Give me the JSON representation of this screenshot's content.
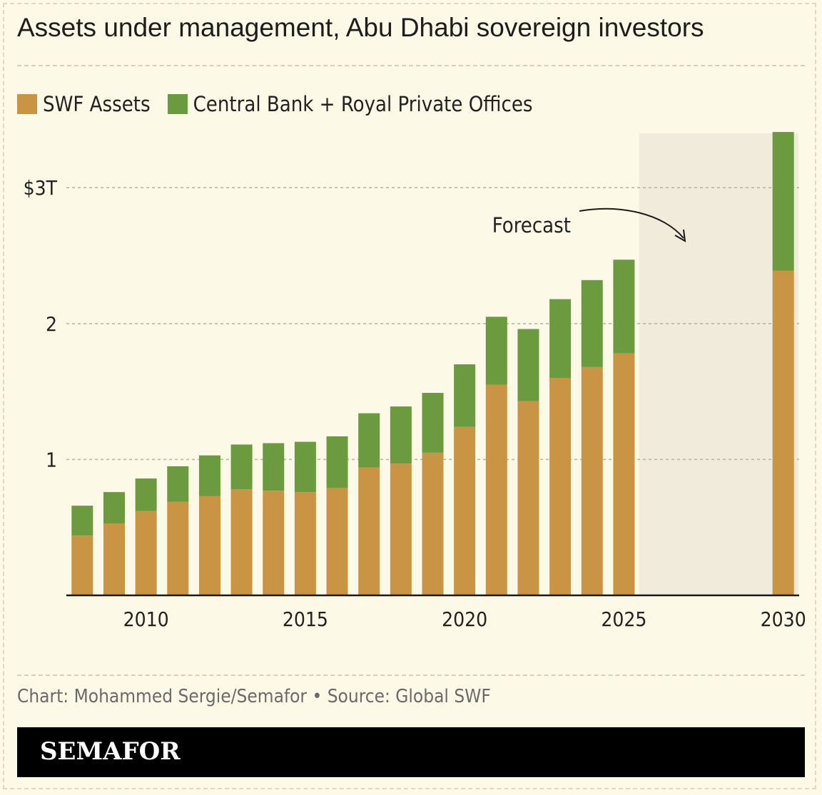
{
  "title": "Assets under management, Abu Dhabi sovereign investors",
  "legend": {
    "items": [
      {
        "label": "SWF Assets",
        "color": "#c99444"
      },
      {
        "label": "Central Bank + Royal Private Offices",
        "color": "#6b9a3f"
      }
    ]
  },
  "footer": {
    "credit": "Chart: Mohammed Sergie/Semafor • Source: Global SWF",
    "brand": "SEMAFOR"
  },
  "colors": {
    "swf": "#c99444",
    "central": "#6b9a3f",
    "forecast_band": "#f1ebdb",
    "background": "#fcf9e7"
  },
  "chart_data": {
    "type": "bar",
    "stacked": true,
    "x": [
      2008,
      2009,
      2010,
      2011,
      2012,
      2013,
      2014,
      2015,
      2016,
      2017,
      2018,
      2019,
      2020,
      2021,
      2022,
      2023,
      2024,
      2025,
      2030
    ],
    "series": [
      {
        "name": "SWF Assets",
        "values": [
          0.44,
          0.53,
          0.62,
          0.69,
          0.73,
          0.78,
          0.77,
          0.76,
          0.79,
          0.94,
          0.97,
          1.05,
          1.24,
          1.55,
          1.43,
          1.6,
          1.68,
          1.78,
          2.39
        ]
      },
      {
        "name": "Central Bank + Royal Private Offices",
        "values": [
          0.22,
          0.23,
          0.24,
          0.26,
          0.3,
          0.33,
          0.35,
          0.37,
          0.38,
          0.4,
          0.42,
          0.44,
          0.46,
          0.5,
          0.53,
          0.58,
          0.64,
          0.69,
          1.02
        ]
      }
    ],
    "x_ticks": [
      {
        "value": 2010,
        "label": "2010"
      },
      {
        "value": 2015,
        "label": "2015"
      },
      {
        "value": 2020,
        "label": "2020"
      },
      {
        "value": 2025,
        "label": "2025"
      },
      {
        "value": 2030,
        "label": "2030"
      }
    ],
    "y_ticks": [
      {
        "value": 1,
        "label": "1"
      },
      {
        "value": 2,
        "label": "2"
      },
      {
        "value": 3,
        "label": "$3T"
      }
    ],
    "ylim": [
      0,
      3.4
    ],
    "xlim": [
      2007.5,
      2030.5
    ],
    "forecast_region": [
      2025.5,
      2030.5
    ],
    "annotation": {
      "text": "Forecast"
    },
    "grid": true
  }
}
